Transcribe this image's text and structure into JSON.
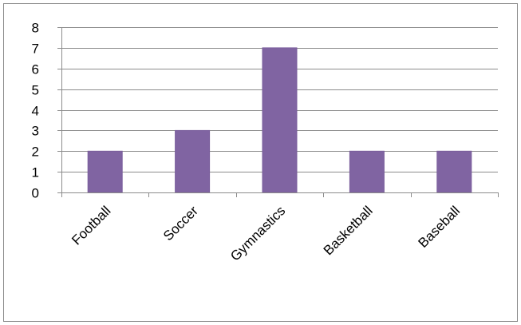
{
  "chart_data": {
    "type": "bar",
    "title": "",
    "xlabel": "",
    "ylabel": "",
    "categories": [
      "Football",
      "Soccer",
      "Gymnastics",
      "Basketball",
      "Baseball"
    ],
    "values": [
      2,
      3,
      7,
      2,
      2
    ],
    "ylim": [
      0,
      8
    ],
    "yticks": [
      0,
      1,
      2,
      3,
      4,
      5,
      6,
      7,
      8
    ],
    "grid": true,
    "legend": "none",
    "colors": {
      "bar": "#8064A2",
      "bar_edge": "#7A5E9C",
      "grid": "#8C8C8C",
      "axis": "#8C8C8C",
      "frame": "#8C8C8C",
      "text": "#000000"
    }
  }
}
